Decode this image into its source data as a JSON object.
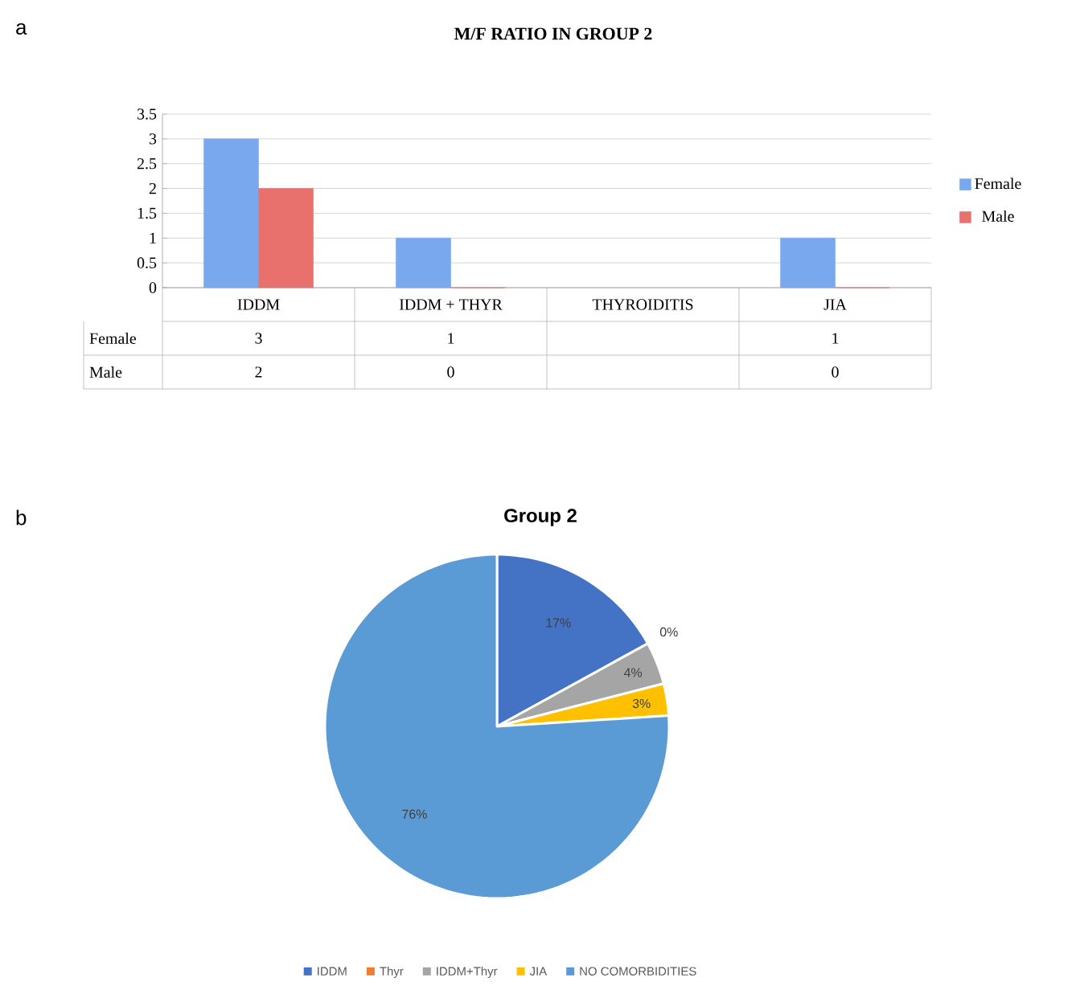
{
  "chart_data": [
    {
      "type": "bar",
      "title": "M/F RATIO IN GROUP 2",
      "annotations": [
        "a"
      ],
      "categories": [
        "IDDM",
        "IDDM + THYR",
        "THYROIDITIS",
        "JIA"
      ],
      "series": [
        {
          "name": "Female",
          "color": "#7aa8ee",
          "values": [
            3,
            1,
            null,
            1
          ]
        },
        {
          "name": "Male",
          "color": "#e8716d",
          "values": [
            2,
            0,
            null,
            0
          ]
        }
      ],
      "ylim": [
        0,
        3.5
      ],
      "yticks": [
        0,
        0.5,
        1,
        1.5,
        2,
        2.5,
        3,
        3.5
      ],
      "grid": "y",
      "legend": "right",
      "data_labels": true
    },
    {
      "type": "pie",
      "title": "Group 2",
      "annotations": [
        "b"
      ],
      "categories": [
        "IDDM",
        "Thyr",
        "IDDM+Thyr",
        "JIA",
        "NO COMORBIDITIES"
      ],
      "values": [
        17,
        0,
        4,
        3,
        76
      ],
      "value_labels": [
        "17%",
        "0%",
        "4%",
        "3%",
        "76%"
      ],
      "colors": [
        "#4472c4",
        "#ed7d31",
        "#a5a5a5",
        "#ffc000",
        "#5b9bd5"
      ],
      "legend": "bottom"
    }
  ]
}
